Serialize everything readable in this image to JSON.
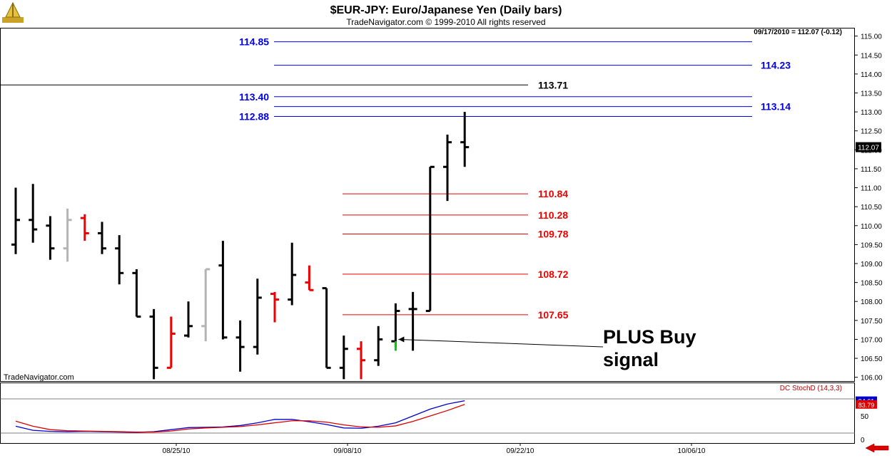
{
  "header": {
    "title": "$EUR-JPY:  Euro/Japanese Yen  (Daily bars)",
    "copyright": "TradeNavigator.com © 1999-2010 All rights reserved",
    "quote": "09/17/2010 = 112.07 (-0.12)",
    "watermark": "TradeNavigator.com"
  },
  "colors": {
    "bar_up": "#000000",
    "bar_down": "#ee0000",
    "bar_grey": "#b4b4b4",
    "signal_bar": "#00cc00",
    "resistance": "#0000ee",
    "support": "#ee0000",
    "pivot": "#000000",
    "stoch_k": "#0000cc",
    "stoch_d": "#dd0000"
  },
  "chart_data": [
    {
      "type": "ohlc",
      "title": "$EUR-JPY:  Euro/Japanese Yen  (Daily bars)",
      "ylim": [
        105.9,
        115.2
      ],
      "y_ticks": [
        "115.00",
        "114.50",
        "114.00",
        "113.50",
        "113.00",
        "112.50",
        "112.00",
        "111.50",
        "111.00",
        "110.50",
        "110.00",
        "109.50",
        "109.00",
        "108.50",
        "108.00",
        "107.50",
        "107.00",
        "106.50",
        "106.00"
      ],
      "x_labels": [
        "08/25/10",
        "09/08/10",
        "09/22/10",
        "10/06/10"
      ],
      "last_price_label": "112.07",
      "bars": [
        {
          "o": 109.5,
          "h": 111.0,
          "l": 109.25,
          "c": 110.15,
          "color": "up"
        },
        {
          "o": 110.15,
          "h": 111.1,
          "l": 109.55,
          "c": 109.9,
          "color": "up"
        },
        {
          "o": 110.0,
          "h": 110.25,
          "l": 109.1,
          "c": 109.4,
          "color": "up"
        },
        {
          "o": 109.4,
          "h": 110.45,
          "l": 109.05,
          "c": 110.15,
          "color": "grey"
        },
        {
          "o": 110.2,
          "h": 110.3,
          "l": 109.6,
          "c": 109.8,
          "color": "down"
        },
        {
          "o": 109.8,
          "h": 110.1,
          "l": 109.25,
          "c": 109.4,
          "color": "up"
        },
        {
          "o": 109.4,
          "h": 109.75,
          "l": 108.45,
          "c": 108.75,
          "color": "up"
        },
        {
          "o": 108.75,
          "h": 108.85,
          "l": 107.6,
          "c": 107.6,
          "color": "up"
        },
        {
          "o": 107.6,
          "h": 107.8,
          "l": 105.95,
          "c": 106.25,
          "color": "up"
        },
        {
          "o": 106.25,
          "h": 107.6,
          "l": 106.25,
          "c": 107.15,
          "color": "down"
        },
        {
          "o": 107.1,
          "h": 108.0,
          "l": 107.05,
          "c": 107.35,
          "color": "up"
        },
        {
          "o": 107.35,
          "h": 108.85,
          "l": 106.95,
          "c": 108.85,
          "color": "grey"
        },
        {
          "o": 108.95,
          "h": 109.6,
          "l": 107.0,
          "c": 107.05,
          "color": "up"
        },
        {
          "o": 107.05,
          "h": 107.5,
          "l": 106.15,
          "c": 106.8,
          "color": "up"
        },
        {
          "o": 106.8,
          "h": 108.6,
          "l": 106.6,
          "c": 108.1,
          "color": "up"
        },
        {
          "o": 108.2,
          "h": 108.25,
          "l": 107.45,
          "c": 108.05,
          "color": "down"
        },
        {
          "o": 108.05,
          "h": 109.55,
          "l": 107.9,
          "c": 108.7,
          "color": "up"
        },
        {
          "o": 108.5,
          "h": 108.95,
          "l": 108.3,
          "c": 108.3,
          "color": "down"
        },
        {
          "o": 108.35,
          "h": 108.35,
          "l": 106.25,
          "c": 106.25,
          "color": "up"
        },
        {
          "o": 106.25,
          "h": 107.1,
          "l": 105.95,
          "c": 106.75,
          "color": "up"
        },
        {
          "o": 106.75,
          "h": 106.95,
          "l": 105.95,
          "c": 106.45,
          "color": "down"
        },
        {
          "o": 106.45,
          "h": 107.35,
          "l": 106.3,
          "c": 107.0,
          "color": "up"
        },
        {
          "o": 106.95,
          "h": 107.95,
          "l": 106.8,
          "c": 107.75,
          "color": "up",
          "signal": true
        },
        {
          "o": 107.8,
          "h": 108.25,
          "l": 106.7,
          "c": 107.8,
          "color": "up"
        },
        {
          "o": 107.75,
          "h": 111.55,
          "l": 107.75,
          "c": 111.55,
          "color": "up"
        },
        {
          "o": 111.55,
          "h": 112.4,
          "l": 110.65,
          "c": 112.2,
          "color": "up"
        },
        {
          "o": 112.2,
          "h": 113.0,
          "l": 111.55,
          "c": 112.07,
          "color": "up"
        }
      ],
      "levels": [
        {
          "value": 114.85,
          "label": "114.85",
          "group": "resistance",
          "label_side": "left"
        },
        {
          "value": 114.23,
          "label": "114.23",
          "group": "resistance",
          "label_side": "right"
        },
        {
          "value": 113.71,
          "label": "113.71",
          "group": "pivot",
          "label_side": "mid"
        },
        {
          "value": 113.4,
          "label": "113.40",
          "group": "resistance",
          "label_side": "left"
        },
        {
          "value": 113.14,
          "label": "113.14",
          "group": "resistance",
          "label_side": "right"
        },
        {
          "value": 112.88,
          "label": "112.88",
          "group": "resistance",
          "label_side": "left"
        },
        {
          "value": 110.84,
          "label": "110.84",
          "group": "support",
          "label_side": "mid"
        },
        {
          "value": 110.28,
          "label": "110.28",
          "group": "support",
          "label_side": "mid"
        },
        {
          "value": 109.78,
          "label": "109.78",
          "group": "support",
          "label_side": "mid"
        },
        {
          "value": 108.72,
          "label": "108.72",
          "group": "support",
          "label_side": "mid"
        },
        {
          "value": 107.65,
          "label": "107.65",
          "group": "support",
          "label_side": "mid"
        }
      ],
      "annotation": {
        "text_lines": [
          "PLUS Buy",
          "signal"
        ],
        "points_to_bar": 22,
        "price": 107.0
      }
    },
    {
      "type": "line",
      "title": "DC StochD (14,3,3)",
      "ylim": [
        0,
        100
      ],
      "y_ticks": [
        "50",
        "0"
      ],
      "last_values": [
        "94.61",
        "83.79"
      ],
      "series": [
        {
          "name": "%K",
          "color": "stoch_k",
          "values": [
            20,
            8,
            5,
            4,
            5,
            4,
            3,
            2,
            4,
            10,
            16,
            17,
            18,
            22,
            30,
            40,
            40,
            33,
            25,
            15,
            14,
            20,
            30,
            50,
            70,
            85,
            94.61
          ]
        },
        {
          "name": "%D",
          "color": "stoch_d",
          "values": [
            35,
            20,
            10,
            7,
            6,
            5,
            4,
            3,
            3,
            6,
            12,
            15,
            17,
            19,
            24,
            30,
            36,
            36,
            32,
            24,
            18,
            17,
            21,
            34,
            50,
            66,
            83.79
          ]
        }
      ]
    }
  ]
}
